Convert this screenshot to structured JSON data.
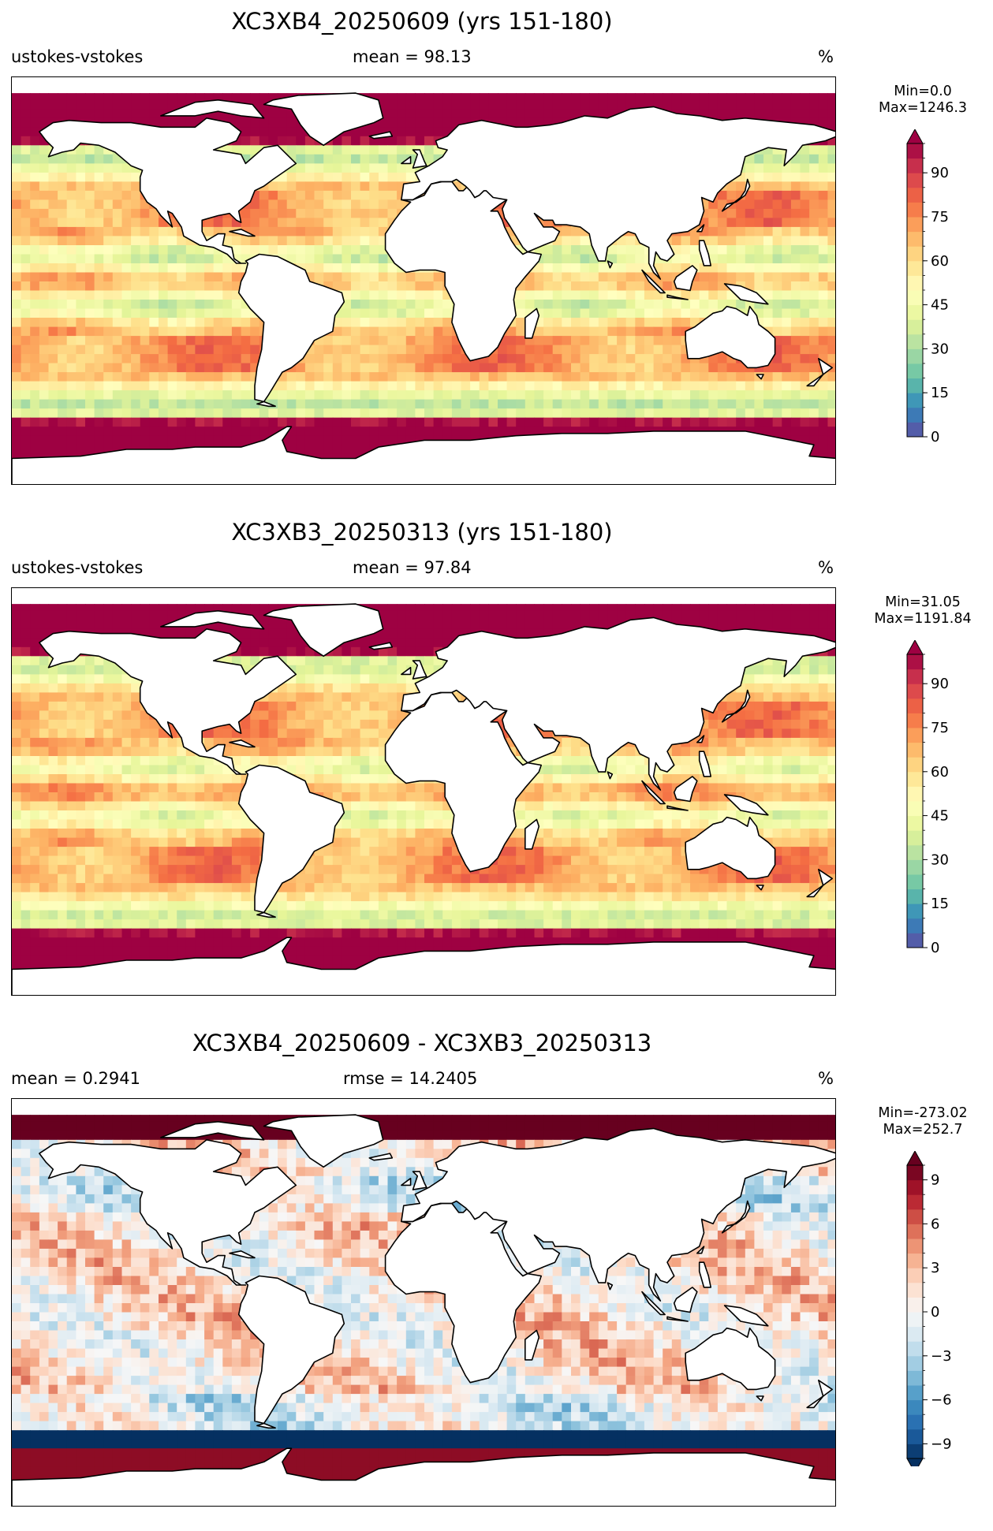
{
  "panels": [
    {
      "title": "XC3XB4_20250609 (yrs 151-180)",
      "left_label": "ustokes-vstokes",
      "middle_label": "mean = 98.13",
      "right_label": "%",
      "min_label": "Min=0.0",
      "max_label": "Max=1246.3",
      "colorbar": {
        "colormap": "Spectral_r",
        "ticks": [
          "0",
          "15",
          "30",
          "45",
          "60",
          "75",
          "90"
        ],
        "range": [
          0,
          100
        ],
        "extend": "max"
      }
    },
    {
      "title": "XC3XB3_20250313 (yrs 151-180)",
      "left_label": "ustokes-vstokes",
      "middle_label": "mean = 97.84",
      "right_label": "%",
      "min_label": "Min=31.05",
      "max_label": "Max=1191.84",
      "colorbar": {
        "colormap": "Spectral_r",
        "ticks": [
          "0",
          "15",
          "30",
          "45",
          "60",
          "75",
          "90"
        ],
        "range": [
          0,
          100
        ],
        "extend": "max"
      }
    },
    {
      "title": "XC3XB4_20250609 - XC3XB3_20250313",
      "left_label": "mean = 0.2941",
      "middle_label": "rmse = 14.2405",
      "right_label": "%",
      "min_label": "Min=-273.02",
      "max_label": "Max=252.7",
      "colorbar": {
        "colormap": "RdBu_r",
        "ticks": [
          "−9",
          "−6",
          "−3",
          "0",
          "3",
          "6",
          "9"
        ],
        "range": [
          -10,
          10
        ],
        "extend": "both"
      }
    }
  ]
}
